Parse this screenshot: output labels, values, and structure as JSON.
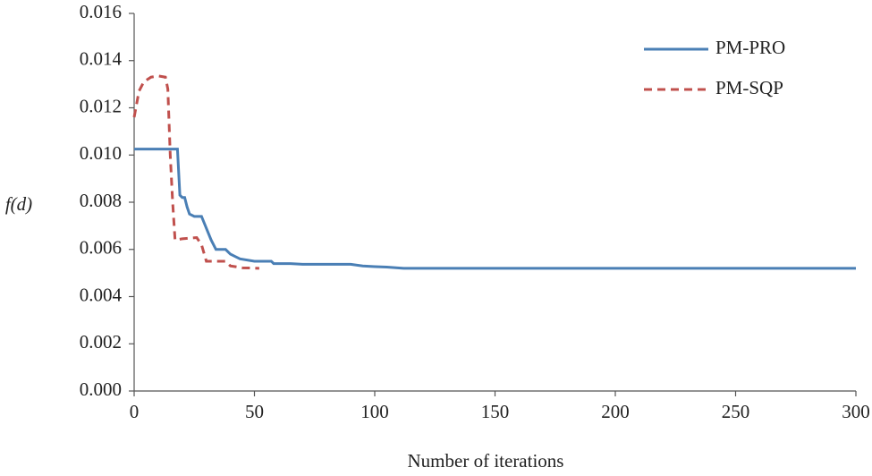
{
  "chart_data": {
    "type": "line",
    "x_label": "Number of iterations",
    "y_label": "f(d)",
    "xlim": [
      0,
      300
    ],
    "xticks": [
      0,
      50,
      100,
      150,
      200,
      250,
      300
    ],
    "ylim": [
      0,
      0.016
    ],
    "yticks": [
      {
        "value": 0,
        "label": "0.000"
      },
      {
        "value": 0.002,
        "label": "0.002"
      },
      {
        "value": 0.004,
        "label": "0.004"
      },
      {
        "value": 0.006,
        "label": "0.006"
      },
      {
        "value": 0.008,
        "label": "0.008"
      },
      {
        "value": 0.01,
        "label": "0.010"
      },
      {
        "value": 0.012,
        "label": "0.012"
      },
      {
        "value": 0.014,
        "label": "0.014"
      },
      {
        "value": 0.016,
        "label": "0.016"
      }
    ],
    "legend": "top-right",
    "series": [
      {
        "name": "PM-PRO",
        "color": "#4a7fb5",
        "dash": false,
        "x": [
          0,
          18,
          19,
          20,
          21,
          22,
          23,
          25,
          28,
          30,
          32,
          34,
          38,
          40,
          42,
          44,
          50,
          57,
          58,
          65,
          70,
          90,
          95,
          100,
          105,
          112,
          300
        ],
        "values": [
          0.01025,
          0.01025,
          0.0083,
          0.0082,
          0.0082,
          0.0078,
          0.0075,
          0.0074,
          0.0074,
          0.0069,
          0.0064,
          0.006,
          0.006,
          0.0058,
          0.0057,
          0.0056,
          0.0055,
          0.0055,
          0.0054,
          0.0054,
          0.00537,
          0.00537,
          0.0053,
          0.00527,
          0.00525,
          0.0052,
          0.0052
        ]
      },
      {
        "name": "PM-SQP",
        "color": "#c0504d",
        "dash": true,
        "x": [
          0,
          2,
          4,
          7,
          10,
          13,
          14,
          15,
          16,
          17,
          20,
          26,
          28,
          30,
          32,
          38,
          40,
          45,
          52
        ],
        "values": [
          0.0116,
          0.0127,
          0.0131,
          0.0133,
          0.01335,
          0.0133,
          0.0128,
          0.01,
          0.008,
          0.0064,
          0.00645,
          0.0065,
          0.0062,
          0.0055,
          0.0055,
          0.0055,
          0.0053,
          0.00522,
          0.0052
        ]
      }
    ]
  }
}
